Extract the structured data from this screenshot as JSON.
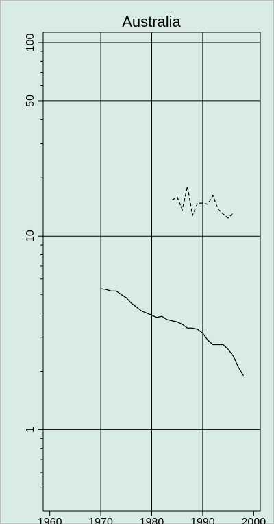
{
  "chart_data": {
    "type": "line",
    "title": "Australia",
    "log_y": true,
    "grid": true,
    "background": "#d9ece4",
    "xlim": [
      1958.7,
      2001.3
    ],
    "xticks": [
      1960,
      1970,
      1980,
      1990,
      2000
    ],
    "xgrid": [
      1970,
      1980,
      1990
    ],
    "ylim": [
      0.38,
      113
    ],
    "yticks": [
      1,
      10,
      50,
      100
    ],
    "yminor_ticks": [
      0.5,
      0.6,
      0.7,
      0.8,
      0.9,
      2,
      3,
      4,
      5,
      6,
      7,
      8,
      9,
      20,
      30,
      40,
      60,
      70,
      80,
      90
    ],
    "series": [
      {
        "color": "#000000",
        "line_style": "solid",
        "x": [
          1970,
          1971,
          1972,
          1973,
          1974,
          1975,
          1976,
          1977,
          1978,
          1979,
          1980,
          1981,
          1982,
          1983,
          1984,
          1985,
          1986,
          1987,
          1988,
          1989,
          1990,
          1991,
          1992,
          1993,
          1994,
          1995,
          1996,
          1997,
          1998
        ],
        "values": [
          5.34,
          5.3,
          5.2,
          5.2,
          5.0,
          4.8,
          4.5,
          4.3,
          4.1,
          4.0,
          3.9,
          3.8,
          3.85,
          3.7,
          3.65,
          3.6,
          3.5,
          3.35,
          3.35,
          3.3,
          3.15,
          2.9,
          2.75,
          2.75,
          2.75,
          2.6,
          2.4,
          2.1,
          1.9
        ]
      },
      {
        "color": "#000000",
        "line_style": "dashed",
        "x": [
          1984,
          1985,
          1986,
          1987,
          1988,
          1989,
          1990,
          1991,
          1992,
          1993,
          1994,
          1995,
          1996
        ],
        "values": [
          15.4,
          15.9,
          13.7,
          18.1,
          12.8,
          14.8,
          14.8,
          14.6,
          16.2,
          13.8,
          13.0,
          12.4,
          13.2
        ]
      }
    ]
  }
}
